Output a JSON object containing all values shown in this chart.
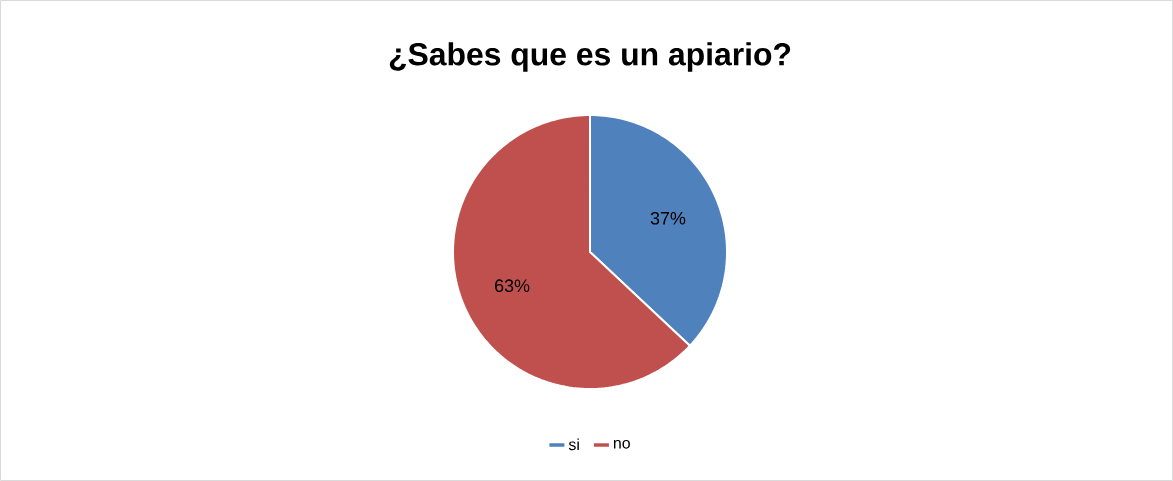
{
  "chart_data": {
    "type": "pie",
    "title": "¿Sabes que es un apiario?",
    "categories": [
      "si",
      "no"
    ],
    "values": [
      37,
      63
    ],
    "colors": [
      "#4f81bd",
      "#c0504d"
    ],
    "value_labels": [
      "37%",
      "63%"
    ],
    "legend": "bottom"
  }
}
